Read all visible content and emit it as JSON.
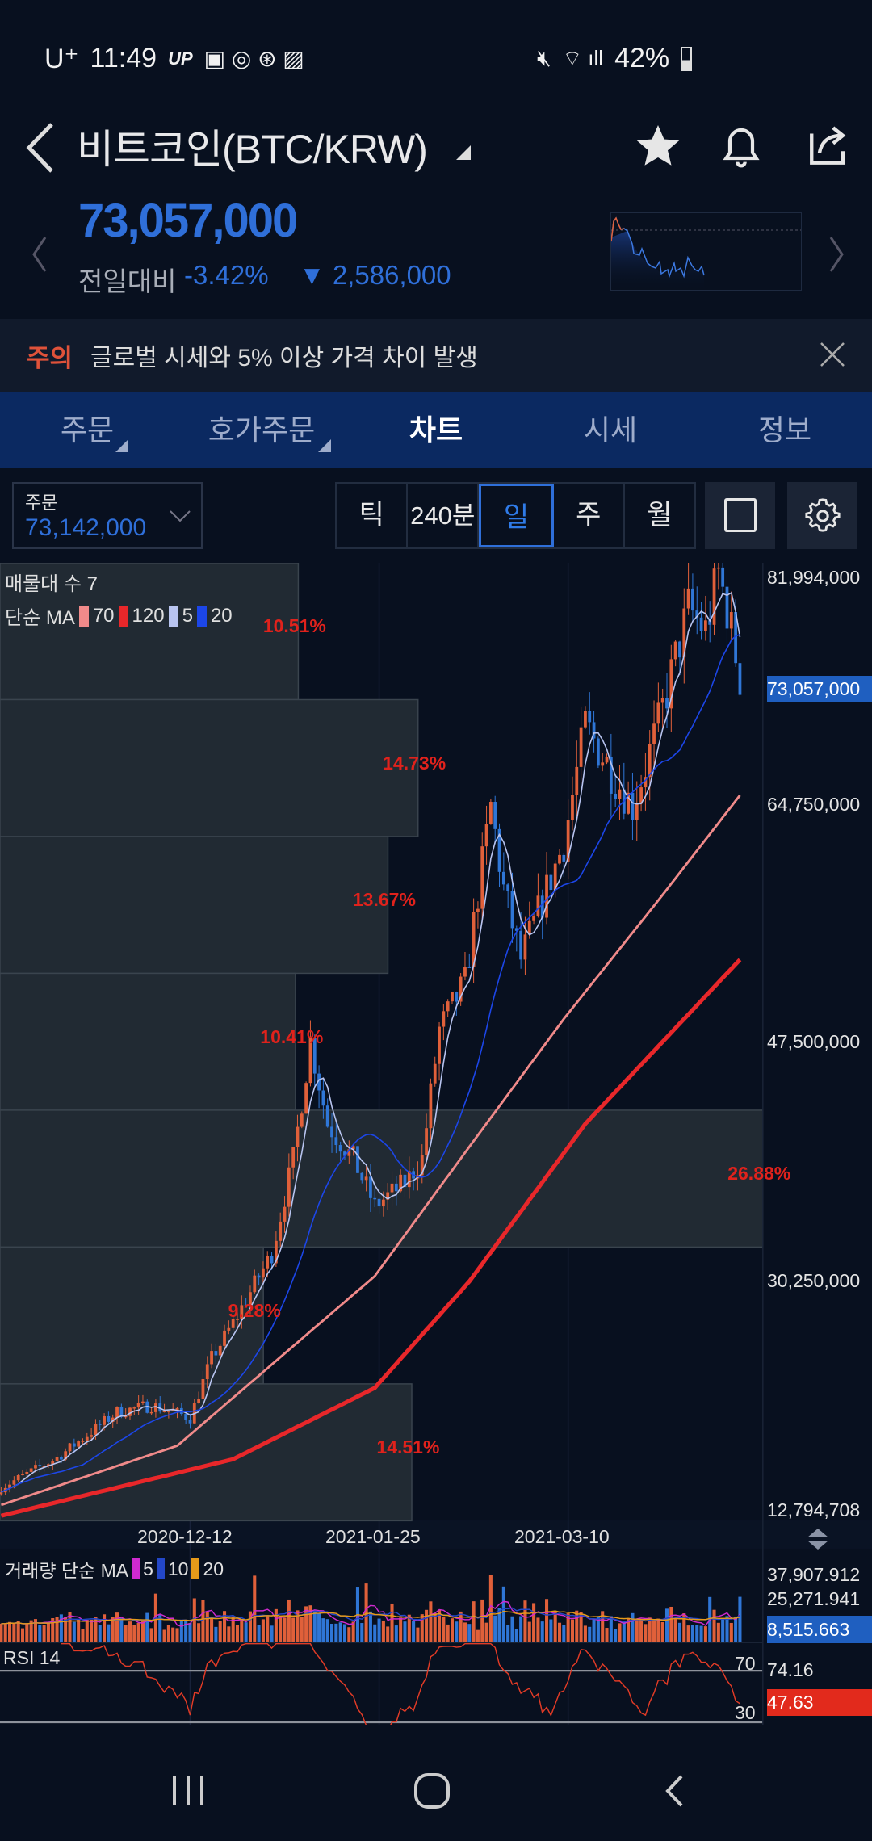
{
  "status_bar": {
    "carrier": "U⁺",
    "time": "11:49",
    "app_badge": "UP",
    "battery": "42%"
  },
  "header": {
    "title": "비트코인(BTC/KRW)"
  },
  "quote": {
    "price": "73,057,000",
    "change_label": "전일대비",
    "change_pct": "-3.42%",
    "change_abs": "▼ 2,586,000"
  },
  "alert": {
    "tag": "주의",
    "message": "글로벌 시세와 5% 이상 가격 차이 발생"
  },
  "tabs": [
    {
      "label": "주문"
    },
    {
      "label": "호가주문"
    },
    {
      "label": "차트"
    },
    {
      "label": "시세"
    },
    {
      "label": "정보"
    }
  ],
  "order_select": {
    "label": "주문",
    "value": "73,142,000"
  },
  "periods": [
    {
      "label": "틱"
    },
    {
      "label": "240분"
    },
    {
      "label": "일",
      "active": true
    },
    {
      "label": "주"
    },
    {
      "label": "월"
    }
  ],
  "colors": {
    "up": "#e0603a",
    "down": "#2f76d6",
    "ma70": "#f08a8a",
    "ma120": "#e8272a",
    "ma5": "#b8c4f0",
    "ma20": "#1c46e8",
    "vol_ma5": "#d02ad0",
    "vol_ma10": "#2347c8",
    "vol_ma20": "#e69a1a",
    "rsi": "#e23b26"
  },
  "chart": {
    "legend_profile": "매물대 수 7",
    "legend_ma": "단순 MA",
    "ma_periods": [
      "70",
      "120",
      "5",
      "20"
    ],
    "current_price_tag": "73,057,000",
    "volume_legend": "거래량 단순 MA",
    "volume_ma_periods": [
      "5",
      "10",
      "20"
    ],
    "volume_axis": [
      "37,907.912",
      "25,271.941"
    ],
    "volume_current": "8,515.663",
    "rsi_legend": "RSI 14",
    "rsi_levels": [
      "70",
      "30"
    ],
    "rsi_axis": "74.16",
    "rsi_current": "47.63"
  },
  "chart_data": {
    "type": "candlestick",
    "y_axis": {
      "max": 81994000,
      "min": 12794708,
      "ticks": [
        "81,994,000",
        "64,750,000",
        "47,500,000",
        "30,250,000",
        "12,794,708"
      ]
    },
    "x_axis_ticks": [
      "2020-12-12",
      "2021-01-25",
      "2021-03-10"
    ],
    "close_keypoints": [
      [
        "2020-10-29",
        14200000
      ],
      [
        "2020-11-11",
        16400000
      ],
      [
        "2020-11-25",
        19800000
      ],
      [
        "2020-12-03",
        20300000
      ],
      [
        "2020-12-12",
        19400000
      ],
      [
        "2020-12-17",
        23800000
      ],
      [
        "2020-12-22",
        26400000
      ],
      [
        "2020-12-31",
        31600000
      ],
      [
        "2021-01-05",
        38600000
      ],
      [
        "2021-01-09",
        47300000
      ],
      [
        "2021-01-13",
        41200000
      ],
      [
        "2021-01-19",
        38600000
      ],
      [
        "2021-01-24",
        35100000
      ],
      [
        "2021-01-31",
        36800000
      ],
      [
        "2021-02-04",
        38600000
      ],
      [
        "2021-02-08",
        48200000
      ],
      [
        "2021-02-14",
        51700000
      ],
      [
        "2021-02-20",
        64800000
      ],
      [
        "2021-02-23",
        58600000
      ],
      [
        "2021-02-27",
        53400000
      ],
      [
        "2021-03-05",
        58600000
      ],
      [
        "2021-03-09",
        62100000
      ],
      [
        "2021-03-14",
        70800000
      ],
      [
        "2021-03-20",
        67400000
      ],
      [
        "2021-03-25",
        64800000
      ],
      [
        "2021-03-31",
        70800000
      ],
      [
        "2021-04-07",
        79500000
      ],
      [
        "2021-04-11",
        77800000
      ],
      [
        "2021-04-14",
        82100000
      ],
      [
        "2021-04-16",
        79500000
      ],
      [
        "2021-04-18",
        76000000
      ],
      [
        "2021-04-19",
        73057000
      ]
    ],
    "ma70": [
      [
        "2020-10-29",
        12900000
      ],
      [
        "2020-12-09",
        17300000
      ],
      [
        "2021-01-05",
        24700000
      ],
      [
        "2021-01-24",
        29900000
      ],
      [
        "2021-02-15",
        39500000
      ],
      [
        "2021-03-09",
        49000000
      ],
      [
        "2021-03-31",
        57800000
      ],
      [
        "2021-04-19",
        65600000
      ]
    ],
    "ma120": [
      [
        "2020-10-29",
        12100000
      ],
      [
        "2020-12-22",
        16300000
      ],
      [
        "2021-01-24",
        21600000
      ],
      [
        "2021-02-15",
        29500000
      ],
      [
        "2021-03-14",
        41200000
      ],
      [
        "2021-04-19",
        53400000
      ]
    ],
    "volume_profile_pct": [
      10.51,
      14.73,
      13.67,
      10.41,
      26.88,
      9.28,
      14.51
    ]
  }
}
